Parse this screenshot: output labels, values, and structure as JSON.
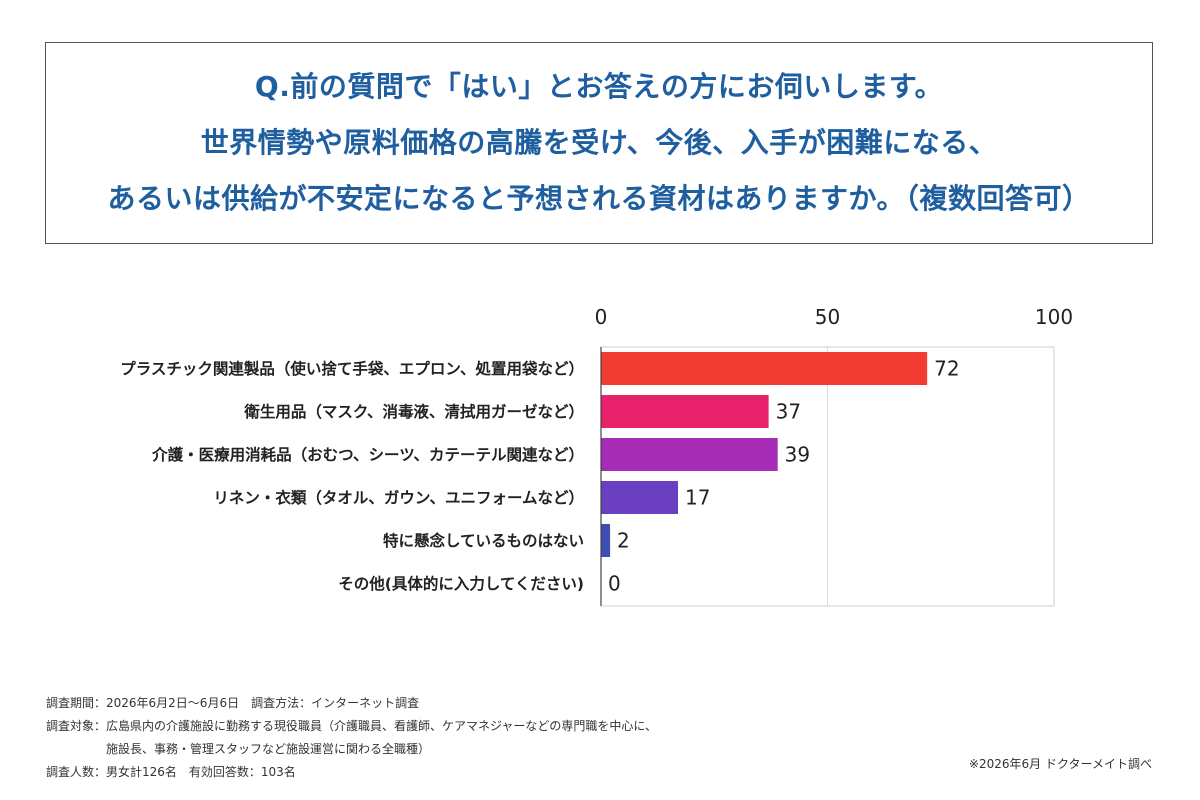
{
  "question": {
    "lines": [
      "Q.前の質問で「はい」とお答えの方にお伺いします。",
      "世界情勢や原料価格の高騰を受け、今後、入手が困難になる、",
      "あるいは供給が不安定になると予想される資材はありますか。（複数回答可）"
    ]
  },
  "chart_data": {
    "type": "bar",
    "orientation": "horizontal",
    "categories": [
      "プラスチック関連製品（使い捨て手袋、エプロン、処置用袋など）",
      "衛生用品（マスク、消毒液、清拭用ガーゼなど）",
      "介護・医療用消耗品（おむつ、シーツ、カテーテル関連など）",
      "リネン・衣類（タオル、ガウン、ユニフォームなど）",
      "特に懸念しているものはない",
      "その他(具体的に入力してください)"
    ],
    "values": [
      72,
      37,
      39,
      17,
      2,
      0
    ],
    "value_labels": [
      "72",
      "37",
      "39",
      "17",
      "2",
      "0"
    ],
    "xlim": [
      0,
      100
    ],
    "x_ticks": [
      0,
      50,
      100
    ],
    "x_tick_labels": [
      "0",
      "50",
      "100"
    ],
    "axis_position": "top",
    "grid": true,
    "colors": [
      "#f23c32",
      "#e8226a",
      "#a62cb5",
      "#6a3fc0",
      "#3e4fb3",
      "#3e4fb3"
    ]
  },
  "notes": {
    "period": "調査期間：2026年6月2日〜6月6日　調査方法：インターネット調査",
    "target_1": "調査対象：広島県内の介護施設に勤務する現役職員（介護職員、看護師、ケアマネジャーなどの専門職を中心に、",
    "target_2": "施設長、事務・管理スタッフなど施設運営に関わる全職種）",
    "respondents": "調査人数：男女計126名　有効回答数：103名"
  },
  "source": "※2026年6月 ドクターメイト調べ"
}
